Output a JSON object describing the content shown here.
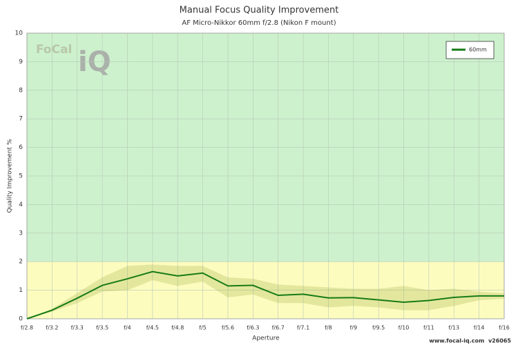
{
  "chart_data": {
    "type": "line",
    "title": "Manual Focus Quality Improvement",
    "subtitle": "AF Micro-Nikkor 60mm f/2.8 (Nikon F mount)",
    "x_label": "Aperture",
    "y_label": "Quality Improvement %",
    "categories": [
      "f/2.8",
      "f/3.2",
      "f/3.3",
      "f/3.5",
      "f/4",
      "f/4.5",
      "f/4.8",
      "f/5",
      "f/5.6",
      "f/6.3",
      "f/6.7",
      "f/7.1",
      "f/8",
      "f/9",
      "f/9.5",
      "f/10",
      "f/11",
      "f/13",
      "f/14",
      "f/16"
    ],
    "series": [
      {
        "name": "60mm",
        "color": "#167a16",
        "values": [
          0,
          0.3,
          0.72,
          1.17,
          1.4,
          1.65,
          1.5,
          1.6,
          1.15,
          1.17,
          0.82,
          0.86,
          0.73,
          0.74,
          0.66,
          0.58,
          0.64,
          0.75,
          0.8,
          0.8
        ],
        "upper": [
          0,
          0.35,
          0.9,
          1.45,
          1.85,
          1.9,
          1.85,
          1.85,
          1.45,
          1.4,
          1.2,
          1.15,
          1.1,
          1.05,
          1.05,
          1.15,
          1.0,
          1.05,
          0.95,
          0.9
        ],
        "lower": [
          0,
          0.25,
          0.55,
          0.95,
          1.0,
          1.35,
          1.15,
          1.3,
          0.75,
          0.85,
          0.55,
          0.55,
          0.4,
          0.45,
          0.4,
          0.3,
          0.3,
          0.45,
          0.65,
          0.7
        ],
        "band_color": "rgba(160,175,70,0.28)"
      }
    ],
    "zones": [
      {
        "from": 0,
        "to": 2,
        "color": "#fdfcbf"
      },
      {
        "from": 2,
        "to": 10,
        "color": "#cdf1cd"
      }
    ],
    "ylim": [
      0,
      10
    ],
    "yticks": [
      0,
      1,
      2,
      3,
      4,
      5,
      6,
      7,
      8,
      9,
      10
    ],
    "grid": true,
    "legend": "top-right",
    "logo": {
      "text": "FoCal",
      "mark": "iQ"
    },
    "footer": "www.focal-iq.com  v26065"
  }
}
